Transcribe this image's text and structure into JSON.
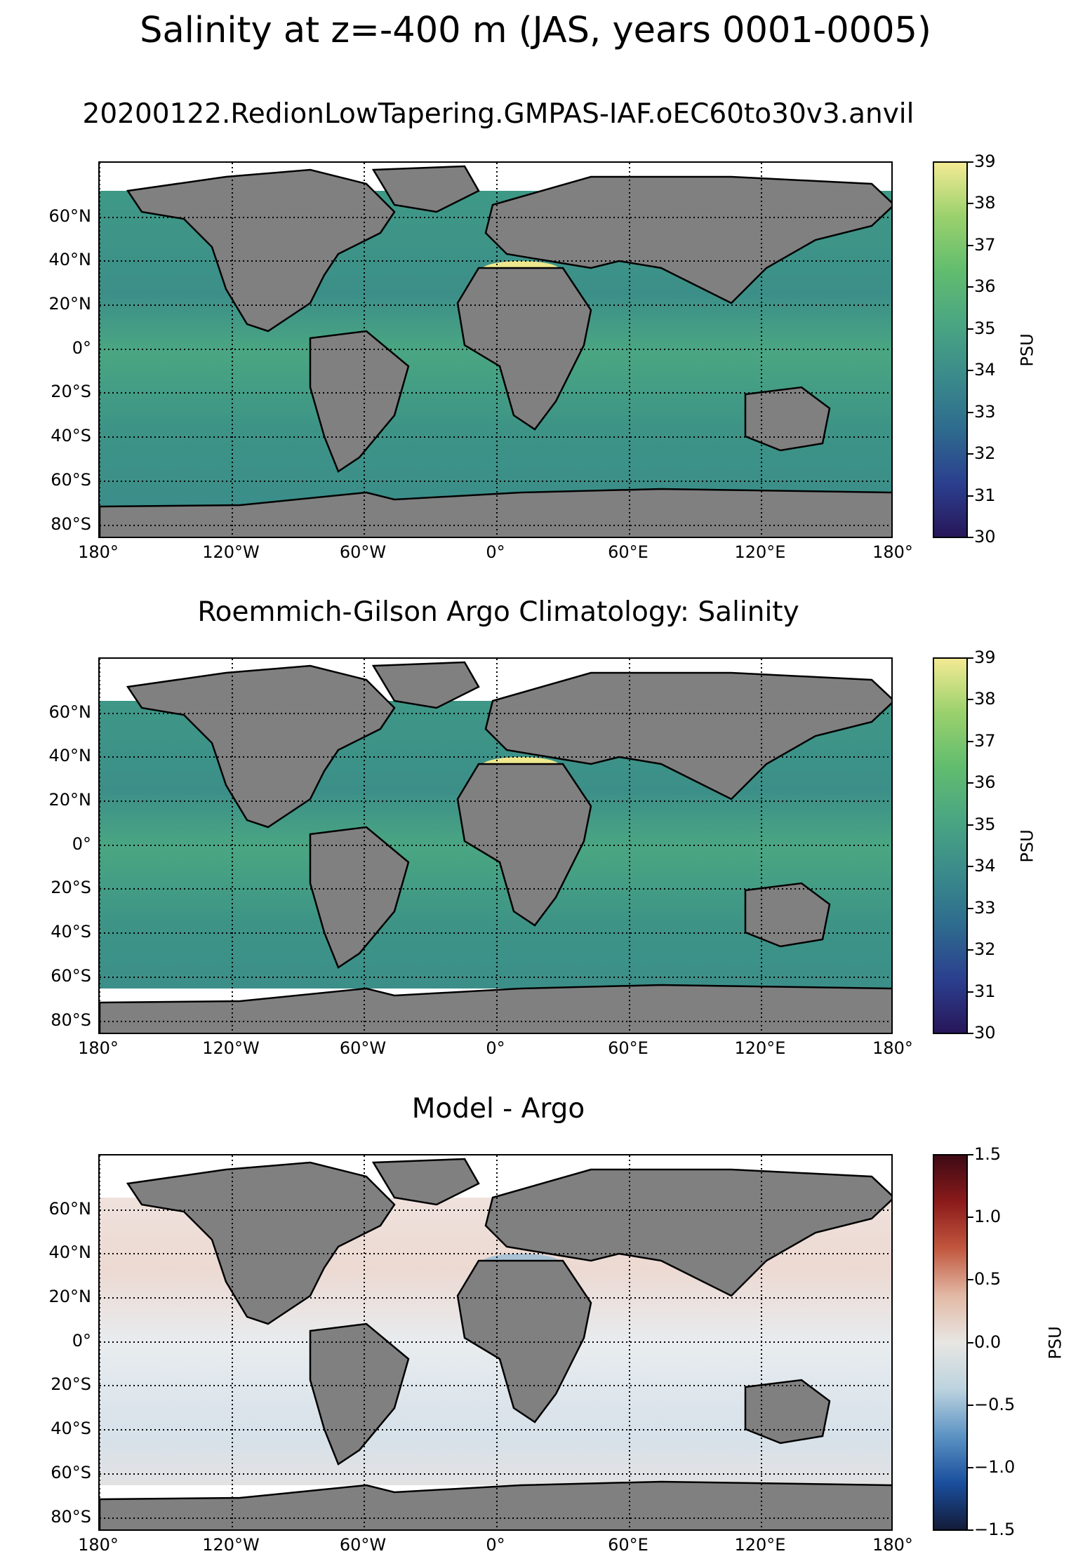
{
  "title": "Salinity at z=-400 m (JAS, years 0001-0005)",
  "lat_labels": [
    "60°N",
    "40°N",
    "20°N",
    "0°",
    "20°S",
    "40°S",
    "60°S",
    "80°S"
  ],
  "lon_labels": [
    "180°",
    "120°W",
    "60°W",
    "0°",
    "60°E",
    "120°E",
    "180°"
  ],
  "panels": [
    {
      "title": "20200122.RedionLowTapering.GMPAS-IAF.oEC60to30v3.anvil",
      "colorbar": {
        "label": "PSU",
        "ticks": [
          "39",
          "38",
          "37",
          "36",
          "35",
          "34",
          "33",
          "32",
          "31",
          "30"
        ],
        "range": [
          30,
          39
        ],
        "colormap": [
          "#28175a",
          "#2b3f8f",
          "#2e6b8e",
          "#3a8b8b",
          "#4aa682",
          "#62bd6e",
          "#9bd16d",
          "#f3ea93"
        ]
      },
      "ocean_color": "#3e9a86"
    },
    {
      "title": "Roemmich-Gilson Argo Climatology: Salinity",
      "colorbar": {
        "label": "PSU",
        "ticks": [
          "39",
          "38",
          "37",
          "36",
          "35",
          "34",
          "33",
          "32",
          "31",
          "30"
        ],
        "range": [
          30,
          39
        ],
        "colormap": [
          "#28175a",
          "#2b3f8f",
          "#2e6b8e",
          "#3a8b8b",
          "#4aa682",
          "#62bd6e",
          "#9bd16d",
          "#f3ea93"
        ]
      },
      "ocean_color": "#3e9a86"
    },
    {
      "title": "Model - Argo",
      "colorbar": {
        "label": "PSU",
        "ticks": [
          "1.5",
          "1.0",
          "0.5",
          "0.0",
          "−0.5",
          "−1.0",
          "−1.5"
        ],
        "range": [
          -1.5,
          1.5
        ],
        "colormap": [
          "#141c3a",
          "#1a4f9e",
          "#5c93c3",
          "#bcd3df",
          "#e8e6e3",
          "#e2b9a5",
          "#c2583f",
          "#8c1b1b",
          "#3d0a14"
        ]
      },
      "ocean_color": "#f2e9e6"
    }
  ]
}
